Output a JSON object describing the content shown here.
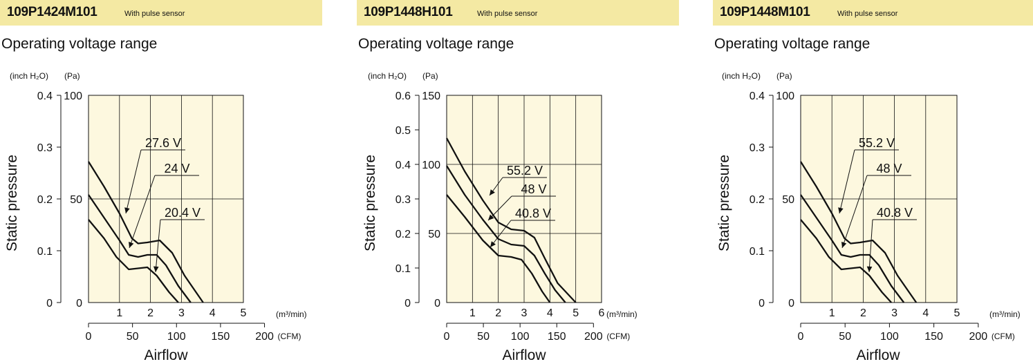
{
  "panels": [
    {
      "model": "109P1424M101",
      "sensor": "With pulse sensor",
      "subtitle": "Operating voltage range"
    },
    {
      "model": "109P1448H101",
      "sensor": "With pulse sensor",
      "subtitle": "Operating voltage range"
    },
    {
      "model": "109P1448M101",
      "sensor": "With pulse sensor",
      "subtitle": "Operating voltage range"
    }
  ],
  "chart_data": [
    {
      "type": "line",
      "title": "109P1424M101",
      "xlabel": "Airflow",
      "ylabel": "Static pressure",
      "unit_labels": {
        "y_inch": "(inch H₂O)",
        "y_pa": "(Pa)",
        "x_m3": "(m³/min)",
        "x_cfm": "(CFM)"
      },
      "xlim": [
        0,
        5
      ],
      "ylim_pa": [
        0,
        100
      ],
      "x_ticks_m3": [
        1,
        2,
        3,
        4,
        5
      ],
      "x_ticks_cfm": [
        0,
        50,
        100,
        150,
        200
      ],
      "y_ticks_inch": [
        0,
        0.1,
        0.2,
        0.3,
        0.4
      ],
      "y_ticks_pa": [
        0,
        50,
        100
      ],
      "x_tick_labels_m3": [
        "1",
        "2",
        "3",
        "4",
        "5"
      ],
      "x_tick_labels_cfm": [
        "0",
        "50",
        "100",
        "150",
        "200"
      ],
      "y_tick_labels_inch": [
        "0",
        "0.1",
        "0.2",
        "0.3",
        "0.4"
      ],
      "y_tick_labels_pa": [
        "0",
        "50",
        "100"
      ],
      "grid": true,
      "series": [
        {
          "name": "27.6 V",
          "points": [
            [
              0,
              68
            ],
            [
              0.5,
              56
            ],
            [
              1.0,
              43
            ],
            [
              1.4,
              31
            ],
            [
              1.6,
              28.5
            ],
            [
              1.9,
              29
            ],
            [
              2.3,
              30
            ],
            [
              2.7,
              24
            ],
            [
              3.1,
              13
            ],
            [
              3.7,
              0
            ]
          ]
        },
        {
          "name": "24 V",
          "points": [
            [
              0,
              52
            ],
            [
              0.5,
              41
            ],
            [
              1.0,
              30
            ],
            [
              1.3,
              23
            ],
            [
              1.6,
              22
            ],
            [
              1.9,
              23
            ],
            [
              2.2,
              23
            ],
            [
              2.5,
              18
            ],
            [
              2.9,
              8
            ],
            [
              3.3,
              0
            ]
          ]
        },
        {
          "name": "20.4 V",
          "points": [
            [
              0,
              40
            ],
            [
              0.5,
              31
            ],
            [
              0.9,
              22
            ],
            [
              1.3,
              16
            ],
            [
              1.6,
              16.5
            ],
            [
              1.9,
              17
            ],
            [
              2.2,
              13
            ],
            [
              2.6,
              5
            ],
            [
              2.9,
              0
            ]
          ]
        }
      ]
    },
    {
      "type": "line",
      "title": "109P1448H101",
      "xlabel": "Airflow",
      "ylabel": "Static pressure",
      "unit_labels": {
        "y_inch": "(inch H₂O)",
        "y_pa": "(Pa)",
        "x_m3": "(m³/min)",
        "x_cfm": "(CFM)"
      },
      "xlim": [
        0,
        6
      ],
      "ylim_pa": [
        0,
        150
      ],
      "x_ticks_m3": [
        1,
        2,
        3,
        4,
        5,
        6
      ],
      "x_ticks_cfm": [
        0,
        50,
        100,
        150,
        200
      ],
      "y_ticks_inch": [
        0,
        0.1,
        0.2,
        0.3,
        0.4,
        0.5,
        0.6
      ],
      "y_ticks_pa": [
        0,
        50,
        100,
        150
      ],
      "x_tick_labels_m3": [
        "1",
        "2",
        "3",
        "4",
        "5",
        "6"
      ],
      "x_tick_labels_cfm": [
        "0",
        "50",
        "100",
        "150",
        "200"
      ],
      "y_tick_labels_inch": [
        "0",
        "0.1",
        "0.2",
        "0.3",
        "0.4",
        "0.5",
        "0.6"
      ],
      "y_tick_labels_pa": [
        "0",
        "50",
        "100",
        "150"
      ],
      "grid": true,
      "series": [
        {
          "name": "55.2 V",
          "points": [
            [
              0,
              119
            ],
            [
              0.7,
              95
            ],
            [
              1.4,
              74
            ],
            [
              2.0,
              58
            ],
            [
              2.5,
              53
            ],
            [
              3.0,
              52
            ],
            [
              3.4,
              47
            ],
            [
              3.8,
              32
            ],
            [
              4.3,
              14
            ],
            [
              5.0,
              0
            ]
          ]
        },
        {
          "name": "48 V",
          "points": [
            [
              0,
              99
            ],
            [
              0.7,
              78
            ],
            [
              1.4,
              60
            ],
            [
              2.0,
              46
            ],
            [
              2.5,
              42
            ],
            [
              3.0,
              41
            ],
            [
              3.4,
              34
            ],
            [
              3.8,
              21
            ],
            [
              4.2,
              9
            ],
            [
              4.6,
              0
            ]
          ]
        },
        {
          "name": "40.8 V",
          "points": [
            [
              0,
              78
            ],
            [
              0.7,
              62
            ],
            [
              1.4,
              45
            ],
            [
              2.0,
              34
            ],
            [
              2.5,
              33
            ],
            [
              2.9,
              31
            ],
            [
              3.3,
              21
            ],
            [
              3.7,
              8
            ],
            [
              4.0,
              0
            ]
          ]
        }
      ]
    },
    {
      "type": "line",
      "title": "109P1448M101",
      "xlabel": "Airflow",
      "ylabel": "Static pressure",
      "unit_labels": {
        "y_inch": "(inch H₂O)",
        "y_pa": "(Pa)",
        "x_m3": "(m³/min)",
        "x_cfm": "(CFM)"
      },
      "xlim": [
        0,
        5
      ],
      "ylim_pa": [
        0,
        100
      ],
      "x_ticks_m3": [
        1,
        2,
        3,
        4,
        5
      ],
      "x_ticks_cfm": [
        0,
        50,
        100,
        150,
        200
      ],
      "y_ticks_inch": [
        0,
        0.1,
        0.2,
        0.3,
        0.4
      ],
      "y_ticks_pa": [
        0,
        50,
        100
      ],
      "x_tick_labels_m3": [
        "1",
        "2",
        "3",
        "4",
        "5"
      ],
      "x_tick_labels_cfm": [
        "0",
        "50",
        "100",
        "150",
        "200"
      ],
      "y_tick_labels_inch": [
        "0",
        "0.1",
        "0.2",
        "0.3",
        "0.4"
      ],
      "y_tick_labels_pa": [
        "0",
        "50",
        "100"
      ],
      "grid": true,
      "series": [
        {
          "name": "55.2 V",
          "points": [
            [
              0,
              68
            ],
            [
              0.5,
              56
            ],
            [
              1.0,
              43
            ],
            [
              1.4,
              31
            ],
            [
              1.6,
              28.5
            ],
            [
              1.9,
              29
            ],
            [
              2.3,
              30
            ],
            [
              2.7,
              24
            ],
            [
              3.1,
              13
            ],
            [
              3.7,
              0
            ]
          ]
        },
        {
          "name": "48 V",
          "points": [
            [
              0,
              52
            ],
            [
              0.5,
              41
            ],
            [
              1.0,
              30
            ],
            [
              1.3,
              23
            ],
            [
              1.6,
              22
            ],
            [
              1.9,
              23
            ],
            [
              2.2,
              23
            ],
            [
              2.5,
              18
            ],
            [
              2.9,
              8
            ],
            [
              3.3,
              0
            ]
          ]
        },
        {
          "name": "40.8 V",
          "points": [
            [
              0,
              40
            ],
            [
              0.5,
              31
            ],
            [
              0.9,
              22
            ],
            [
              1.3,
              16
            ],
            [
              1.6,
              16.5
            ],
            [
              1.9,
              17
            ],
            [
              2.2,
              13
            ],
            [
              2.6,
              5
            ],
            [
              2.9,
              0
            ]
          ]
        }
      ]
    }
  ]
}
